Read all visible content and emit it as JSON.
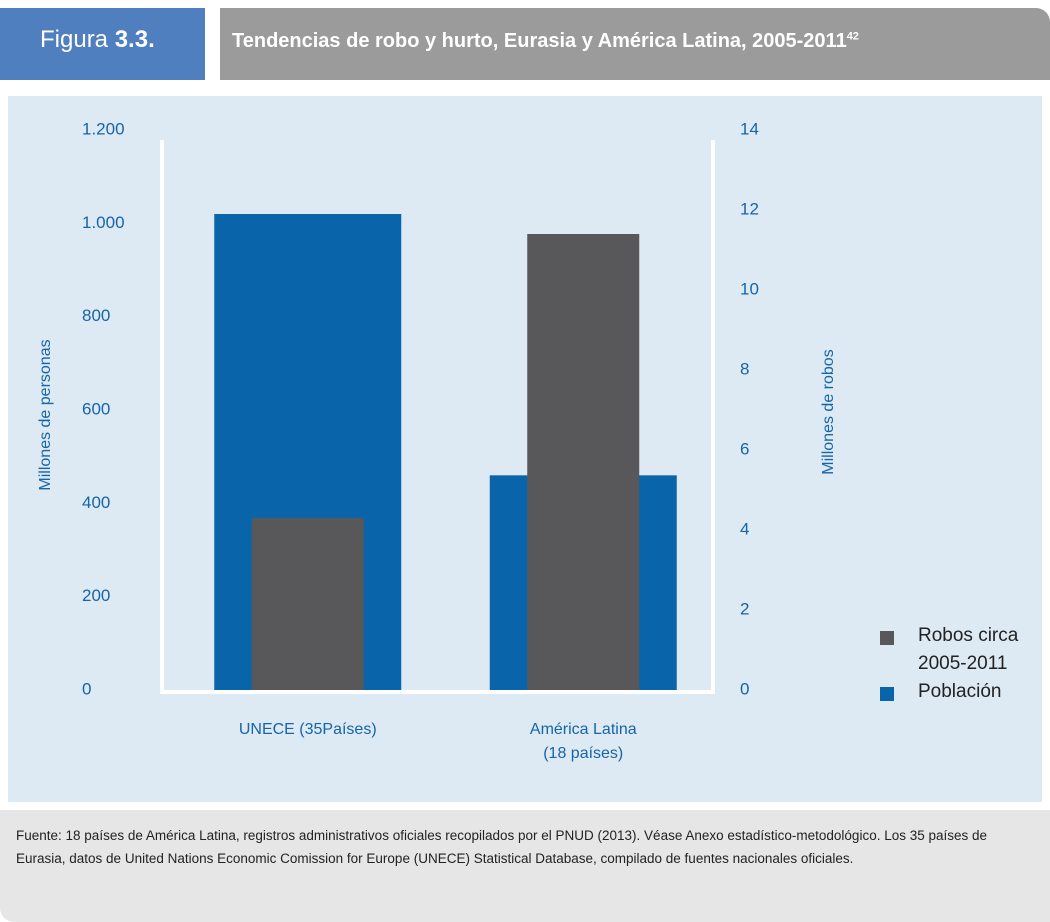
{
  "header": {
    "label": "Figura",
    "number": "3.3.",
    "title": "Tendencias de robo y hurto, Eurasia y América Latina, 2005-2011",
    "superscript": "42"
  },
  "footer": {
    "text": "Fuente: 18 países de América Latina, registros administrativos oficiales recopilados por el PNUD (2013). Véase Anexo estadístico-metodológico. Los 35 países de Eurasia, datos de United Nations Economic Comission for Europe (UNECE) Statistical Database, compilado de fuentes nacionales oficiales."
  },
  "chart_data": {
    "type": "bar",
    "categories": [
      "UNECE (35Países)",
      "América Latina\n(18 países)"
    ],
    "series": [
      {
        "name": "Robos circa\n2005-2011",
        "color": "#58585a",
        "axis": "y2",
        "values": [
          4.3,
          11.4
        ]
      },
      {
        "name": "Población",
        "color": "#0a64aa",
        "values": [
          1020,
          460
        ]
      }
    ],
    "ylabel": "Millones de personas",
    "y2label": "Millones de robos",
    "ylim": [
      0,
      1200
    ],
    "yticks": [
      0,
      200,
      400,
      600,
      800,
      {
        "value": 1000,
        "label": "1.000"
      },
      {
        "value": 1200,
        "label": "1.200"
      }
    ],
    "y2lim": [
      0,
      14
    ],
    "y2ticks": [
      0,
      2,
      4,
      6,
      8,
      10,
      12,
      14
    ],
    "grid": false,
    "legend": "right"
  }
}
